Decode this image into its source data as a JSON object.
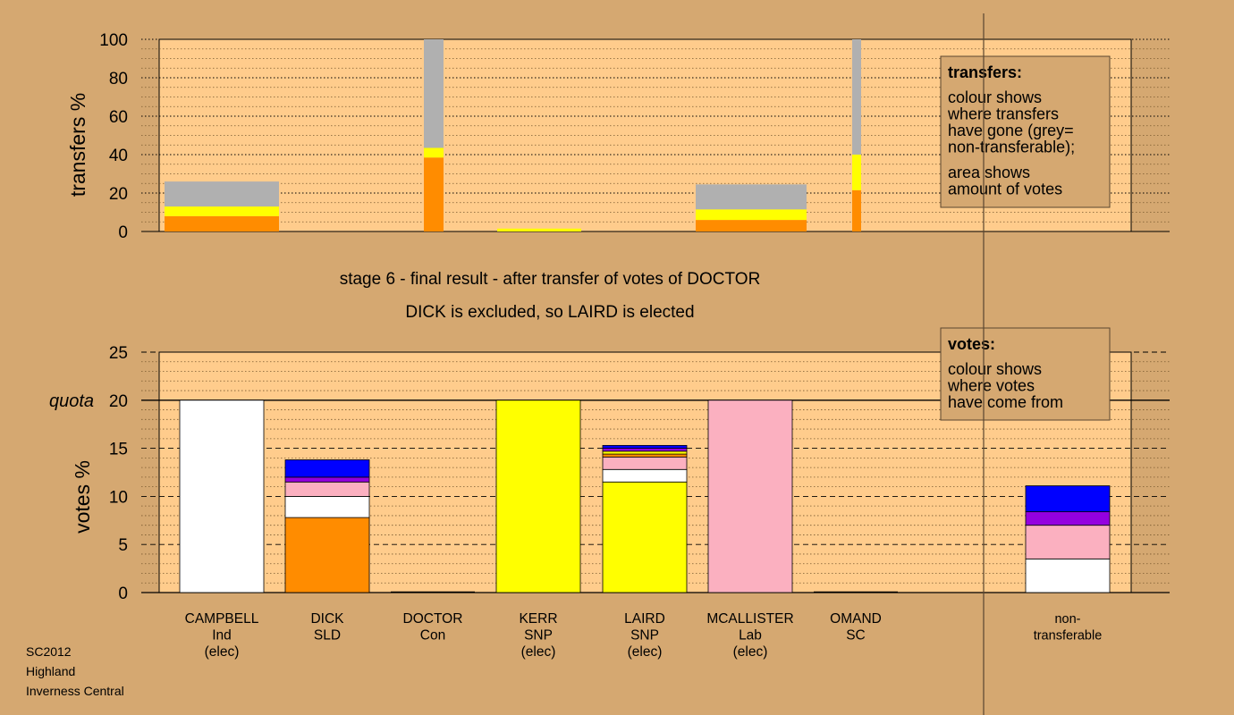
{
  "colors": {
    "page_bg": "#d5a871",
    "plot_bg": "#ffcc8c",
    "grey": "#b0b0b0",
    "yellow": "#ffff00",
    "orange": "#ff8c00",
    "white": "#ffffff",
    "pink": "#fbb0c0",
    "purple": "#9400e0",
    "blue": "#0000ff"
  },
  "heading": {
    "line1": "stage 6 - final result - after transfer of votes of DOCTOR",
    "line2": "DICK is excluded, so LAIRD is elected"
  },
  "footer": [
    "SC2012",
    "Highland",
    "Inverness Central"
  ],
  "chart_data": [
    {
      "id": "transfers",
      "type": "bar",
      "stacked": true,
      "ylabel": "transfers %",
      "ylim": [
        0,
        100
      ],
      "yticks": [
        0,
        20,
        40,
        60,
        80,
        100
      ],
      "grid": "dotted",
      "legend": {
        "placement": "top-right",
        "title": "transfers:",
        "lines": [
          "colour shows",
          "where transfers",
          "have gone (grey=",
          "non-transferable);"
        ],
        "lines2": [
          "area shows",
          "amount of votes"
        ]
      },
      "bars": [
        {
          "segments": [
            {
              "color": "orange",
              "value": 8
            },
            {
              "color": "yellow",
              "value": 5
            },
            {
              "color": "grey",
              "value": 13
            }
          ]
        },
        {
          "segments": [
            {
              "color": "orange",
              "value": 38.5
            },
            {
              "color": "yellow",
              "value": 5
            },
            {
              "color": "grey",
              "value": 56.5
            }
          ]
        },
        {
          "segments": [
            {
              "color": "yellow",
              "value": 1.5
            }
          ]
        },
        {
          "segments": [
            {
              "color": "orange",
              "value": 6
            },
            {
              "color": "yellow",
              "value": 5.5
            },
            {
              "color": "grey",
              "value": 13
            }
          ]
        },
        {
          "segments": [
            {
              "color": "orange",
              "value": 21.5
            },
            {
              "color": "yellow",
              "value": 18.5
            },
            {
              "color": "grey",
              "value": 60
            }
          ]
        }
      ]
    },
    {
      "id": "votes",
      "type": "bar",
      "stacked": true,
      "ylabel": "votes %",
      "ylim": [
        0,
        25
      ],
      "yticks": [
        0,
        5,
        10,
        15,
        20,
        25
      ],
      "quota": {
        "label": "quota",
        "value": 20
      },
      "grid": "dashed",
      "legend": {
        "placement": "top-right",
        "title": "votes:",
        "lines": [
          "colour shows",
          "where votes",
          "have come from"
        ]
      },
      "categories": [
        {
          "lines": [
            "CAMPBELL",
            "Ind",
            "(elec)"
          ]
        },
        {
          "lines": [
            "DICK",
            "SLD"
          ]
        },
        {
          "lines": [
            "DOCTOR",
            "Con"
          ]
        },
        {
          "lines": [
            "KERR",
            "SNP",
            "(elec)"
          ]
        },
        {
          "lines": [
            "LAIRD",
            "SNP",
            "(elec)"
          ]
        },
        {
          "lines": [
            "MCALLISTER",
            "Lab",
            "(elec)"
          ]
        },
        {
          "lines": [
            "OMAND",
            "SC"
          ]
        },
        {
          "lines": [
            "non-",
            "transferable"
          ]
        }
      ],
      "bars": [
        {
          "segments": [
            {
              "color": "white",
              "value": 20
            }
          ]
        },
        {
          "segments": [
            {
              "color": "orange",
              "value": 7.8
            },
            {
              "color": "white",
              "value": 2.2
            },
            {
              "color": "pink",
              "value": 1.5
            },
            {
              "color": "purple",
              "value": 0.5
            },
            {
              "color": "blue",
              "value": 1.8
            }
          ]
        },
        {
          "segments": []
        },
        {
          "segments": [
            {
              "color": "yellow",
              "value": 20
            }
          ]
        },
        {
          "segments": [
            {
              "color": "yellow",
              "value": 11.5
            },
            {
              "color": "white",
              "value": 1.3
            },
            {
              "color": "pink",
              "value": 1.3
            },
            {
              "color": "orange",
              "value": 0.3
            },
            {
              "color": "yellow",
              "value": 0.3
            },
            {
              "color": "purple",
              "value": 0.3
            },
            {
              "color": "blue",
              "value": 0.3
            }
          ]
        },
        {
          "segments": [
            {
              "color": "pink",
              "value": 20
            }
          ]
        },
        {
          "segments": []
        },
        {
          "segments": [
            {
              "color": "white",
              "value": 3.5
            },
            {
              "color": "pink",
              "value": 3.5
            },
            {
              "color": "purple",
              "value": 1.4
            },
            {
              "color": "blue",
              "value": 2.7
            }
          ]
        }
      ]
    }
  ]
}
